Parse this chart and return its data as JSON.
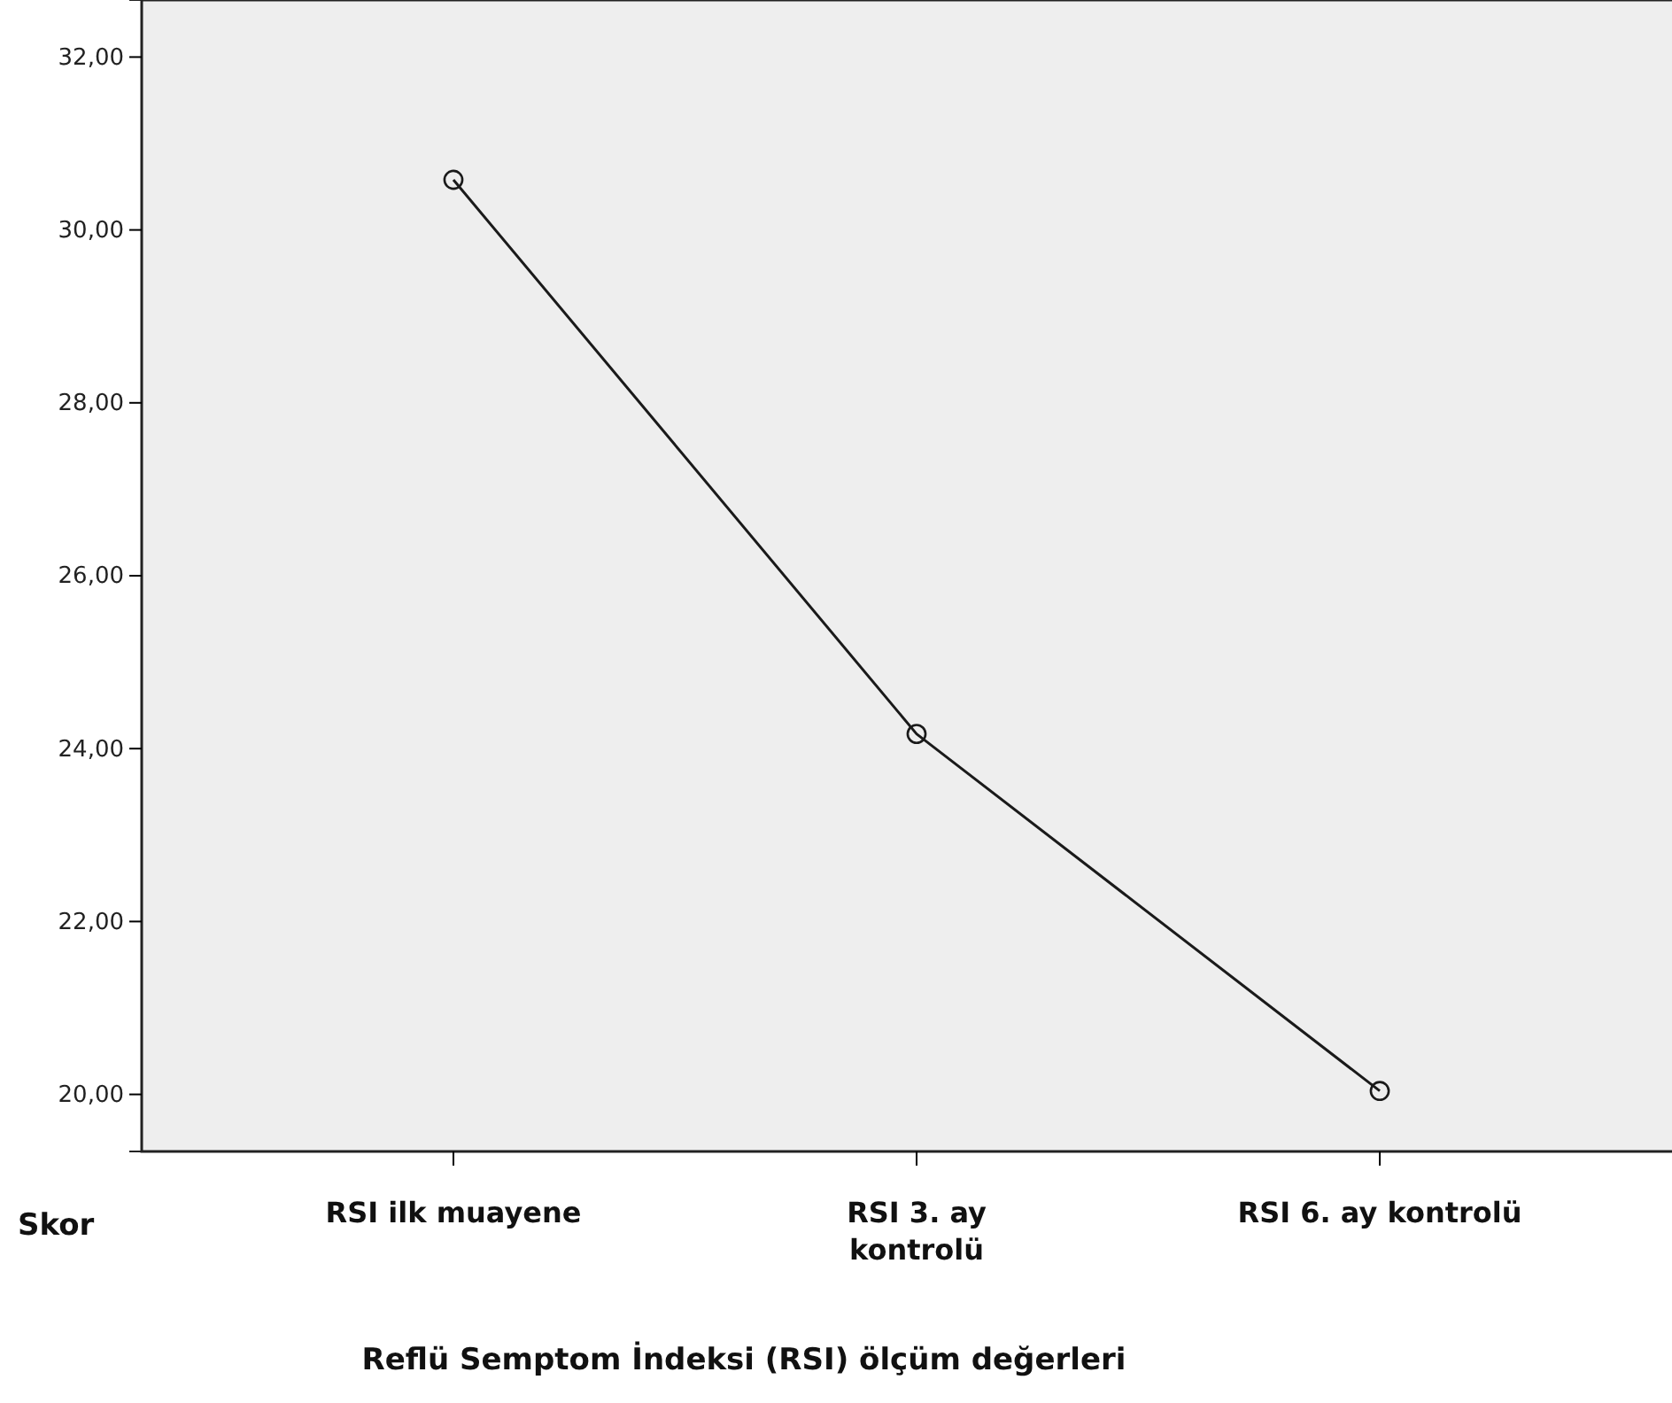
{
  "chart_data": {
    "type": "line",
    "xlabel": "Reflü Semptom İndeksi (RSI) ölçüm değerleri",
    "ylabel": "Skor",
    "categories": [
      "RSI ilk muayene",
      "RSI 3. ay kontrolü",
      "RSI 6. ay kontrolü"
    ],
    "series": [
      {
        "color": "#1a1a1a",
        "values": [
          30.58,
          24.17,
          20.04
        ]
      }
    ],
    "ylim": [
      19.34,
      32.66
    ],
    "yticks": [
      {
        "value": 20,
        "label": "20,00"
      },
      {
        "value": 22,
        "label": "22,00"
      },
      {
        "value": 24,
        "label": "24,00"
      },
      {
        "value": 26,
        "label": "26,00"
      },
      {
        "value": 28,
        "label": "28,00"
      },
      {
        "value": 30,
        "label": "30,00"
      },
      {
        "value": 32,
        "label": "32,00"
      }
    ],
    "marker": "circle",
    "grid": false
  }
}
